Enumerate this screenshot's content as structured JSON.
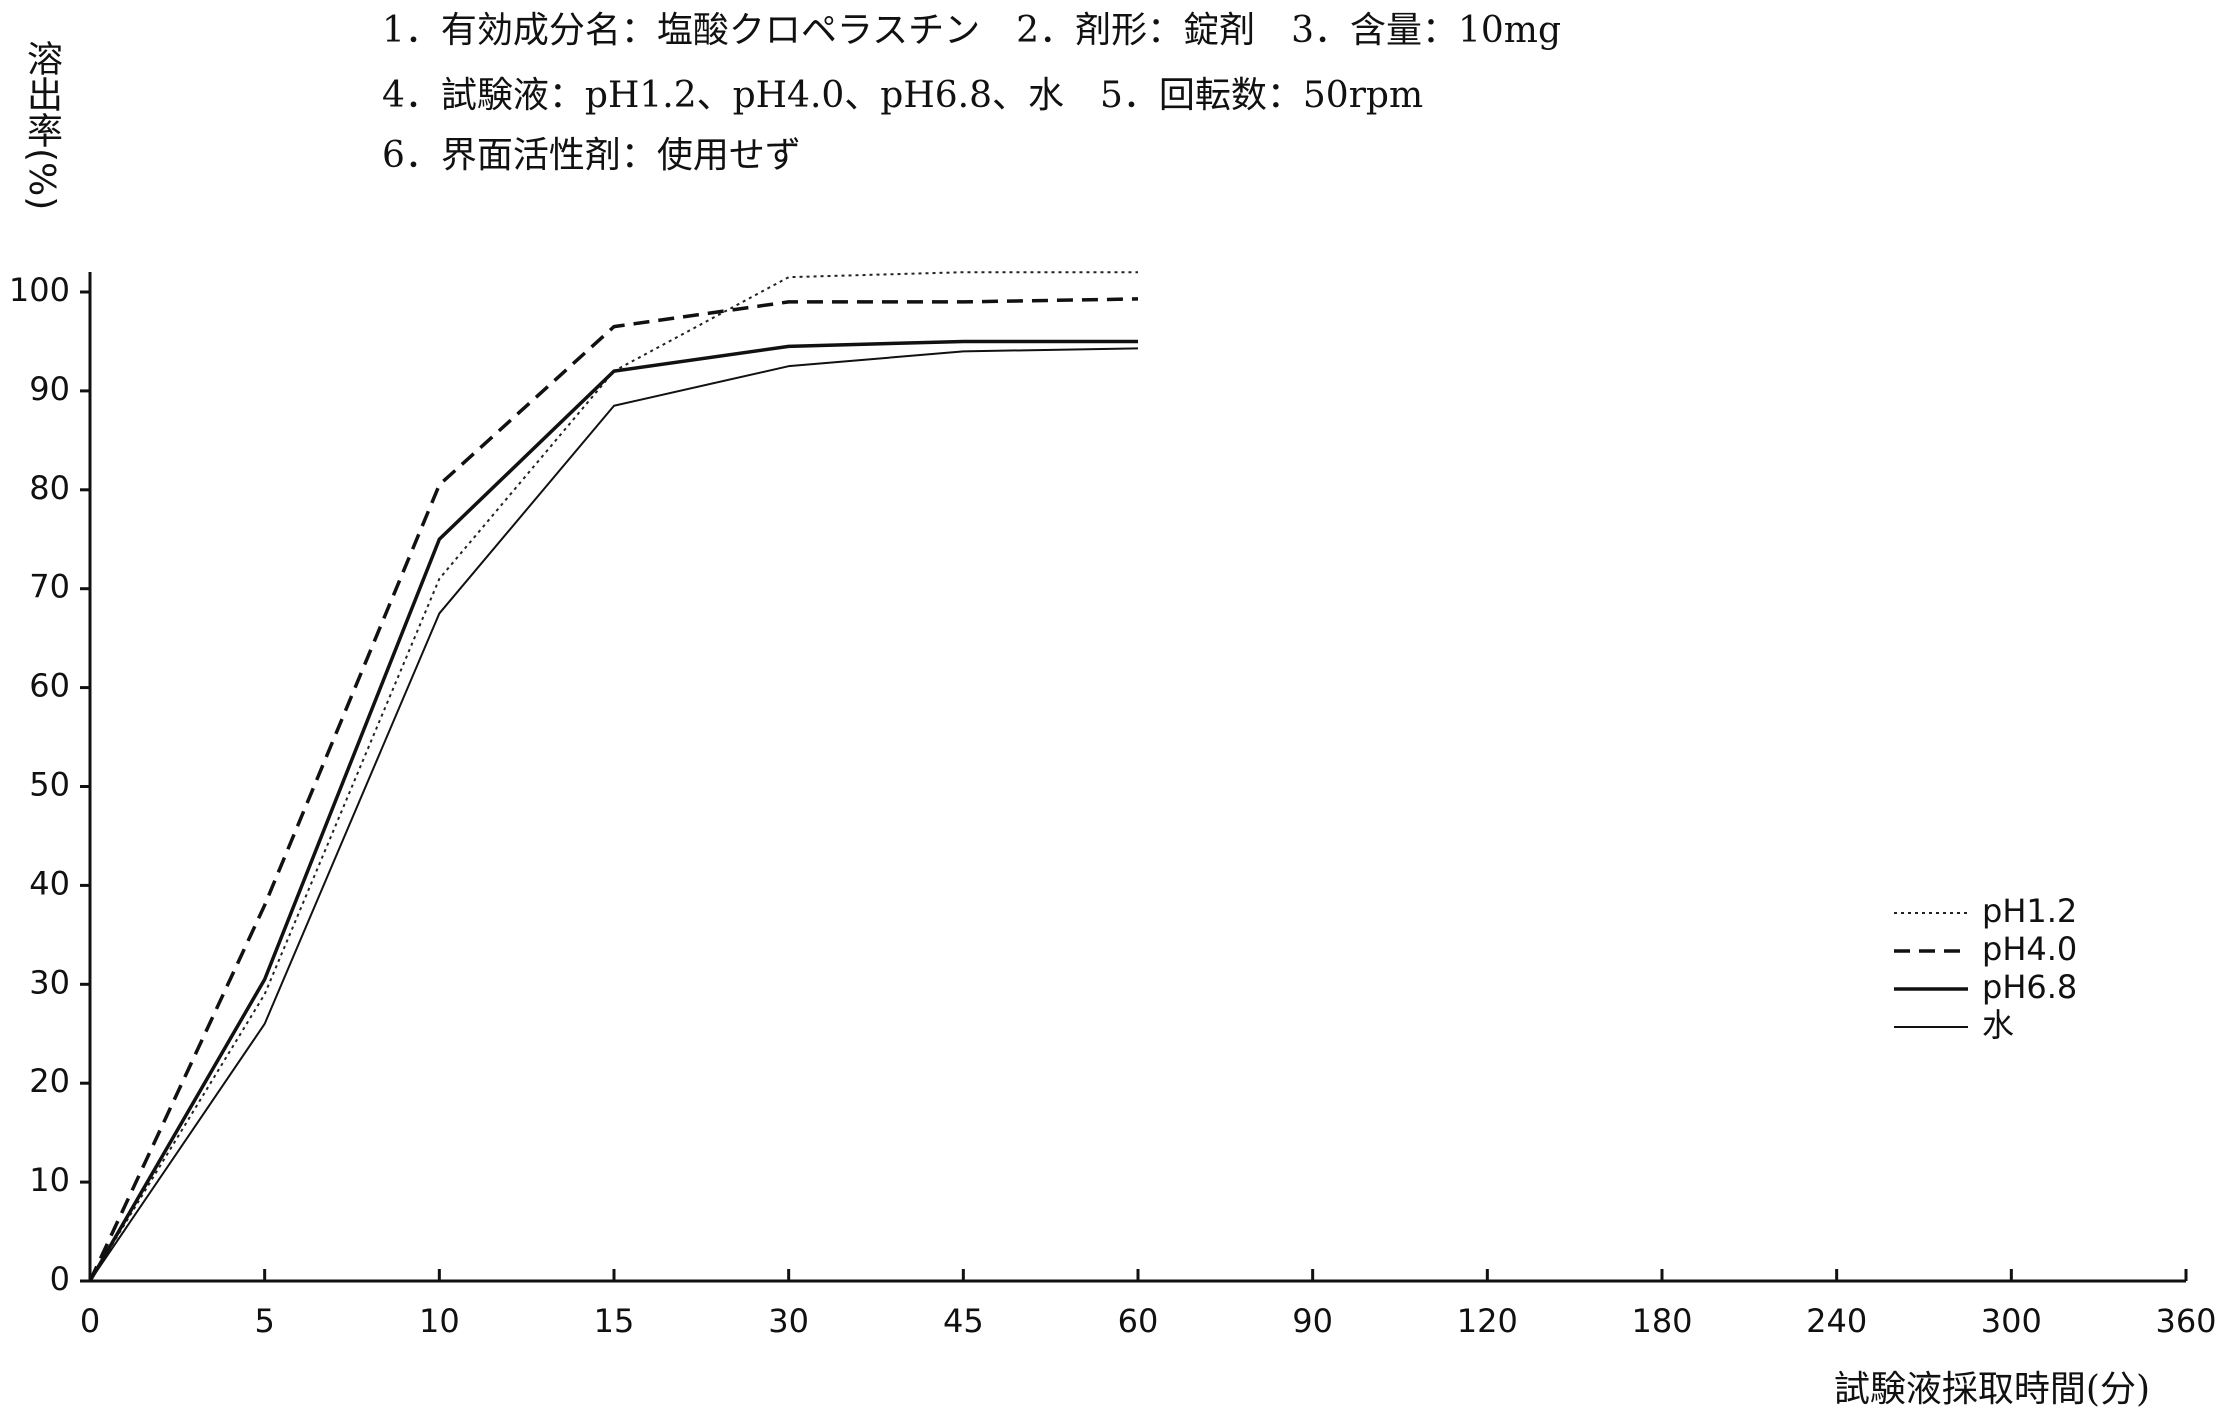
{
  "chart_data": {
    "type": "line",
    "annotations": [
      "1．有効成分名：塩酸クロペラスチン　2．剤形：錠剤　3．含量：10mg",
      "4．試験液：pH1.2、pH4.0、pH6.8、水　5．回転数：50rpm",
      "6．界面活性剤：使用せず"
    ],
    "y_label": "溶出率(%)",
    "x_label": "試験液採取時間(分)",
    "categories": [
      "0",
      "5",
      "10",
      "15",
      "30",
      "45",
      "60",
      "90",
      "120",
      "180",
      "240",
      "300",
      "360"
    ],
    "series": [
      {
        "name": "pH1.2",
        "color": "#222222",
        "line_style": "dotted",
        "weight": "light",
        "values": [
          0,
          29,
          71,
          92,
          101.5,
          102,
          102,
          null,
          null,
          null,
          null,
          null,
          null
        ]
      },
      {
        "name": "pH4.0",
        "color": "#111111",
        "line_style": "dashed",
        "weight": "heavy",
        "values": [
          0,
          38,
          80.5,
          96.5,
          99,
          99,
          99.3,
          null,
          null,
          null,
          null,
          null,
          null
        ]
      },
      {
        "name": "pH6.8",
        "color": "#111111",
        "line_style": "solid",
        "weight": "heavy",
        "values": [
          0,
          30.5,
          75,
          92,
          94.5,
          95,
          95,
          null,
          null,
          null,
          null,
          null,
          null
        ]
      },
      {
        "name": "水",
        "color": "#111111",
        "line_style": "solid",
        "weight": "light",
        "values": [
          0,
          26,
          67.5,
          88.5,
          92.5,
          94,
          94.3,
          null,
          null,
          null,
          null,
          null,
          null
        ]
      }
    ],
    "ylim": [
      0,
      100
    ],
    "yticks": [
      0,
      10,
      20,
      30,
      40,
      50,
      60,
      70,
      80,
      90,
      100
    ],
    "grid": false,
    "legend": "right"
  }
}
